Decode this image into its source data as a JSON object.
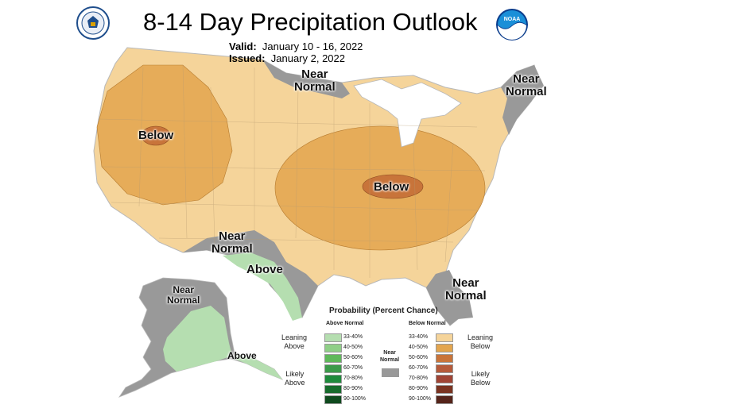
{
  "header": {
    "title": "8-14 Day Precipitation Outlook",
    "valid_label": "Valid:",
    "valid_value": "January 10 - 16, 2022",
    "issued_label": "Issued:",
    "issued_value": "January 2, 2022",
    "left_logo": "commerce-department-seal",
    "right_logo": "noaa-logo",
    "noaa_logo_text": "NOAA"
  },
  "map": {
    "labels": {
      "near_normal_north": "Near\nNormal",
      "near_normal_northeast": "Near\nNormal",
      "below_west": "Below",
      "below_central": "Below",
      "near_normal_south": "Near\nNormal",
      "above_texas": "Above",
      "near_normal_southeast": "Near\nNormal",
      "near_normal_alaska": "Near\nNormal",
      "above_alaska": "Above"
    }
  },
  "legend": {
    "title": "Probability (Percent Chance)",
    "above_header": "Above Normal",
    "below_header": "Below Normal",
    "near_normal_label": "Near\nNormal",
    "leaning_above": "Leaning\nAbove",
    "likely_above": "Likely\nAbove",
    "leaning_below": "Leaning\nBelow",
    "likely_below": "Likely\nBelow",
    "above_bins": [
      {
        "label": "33-40%",
        "color": "#b5deb0"
      },
      {
        "label": "40-50%",
        "color": "#8fcf87"
      },
      {
        "label": "50-60%",
        "color": "#5fb85a"
      },
      {
        "label": "60-70%",
        "color": "#3c9a4a"
      },
      {
        "label": "70-80%",
        "color": "#1f8a3c"
      },
      {
        "label": "80-90%",
        "color": "#176b2c"
      },
      {
        "label": "90-100%",
        "color": "#0f4a1e"
      }
    ],
    "below_bins": [
      {
        "label": "33-40%",
        "color": "#f5d49a"
      },
      {
        "label": "40-50%",
        "color": "#e3a54e"
      },
      {
        "label": "50-60%",
        "color": "#c8743a"
      },
      {
        "label": "60-70%",
        "color": "#b55a3a"
      },
      {
        "label": "70-80%",
        "color": "#a04434"
      },
      {
        "label": "80-90%",
        "color": "#7a3320"
      },
      {
        "label": "90-100%",
        "color": "#55241a"
      }
    ],
    "near_normal_color": "#999999"
  },
  "colors": {
    "near_normal": "#999999",
    "leaning_below": "#f5d49a",
    "below_40_50": "#e3a54e",
    "below_50_60": "#c8743a",
    "leaning_above": "#b5deb0",
    "water": "#ffffff"
  }
}
